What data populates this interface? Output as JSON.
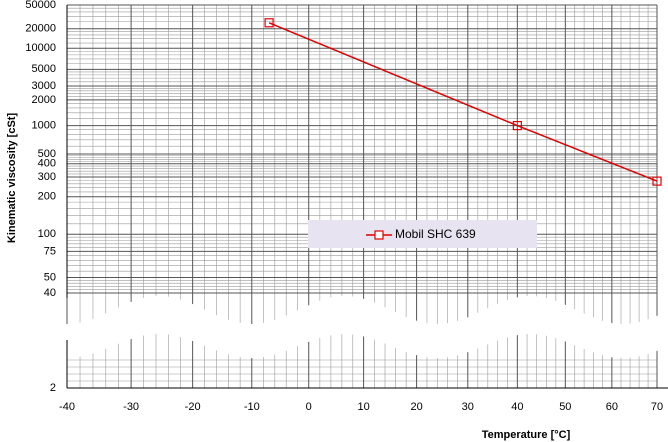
{
  "chart_data": {
    "type": "line",
    "x_label": "Temperature [°C]",
    "y_label": "Kinematic viscosity [cSt]",
    "xscale": "log-kelvin",
    "yscale": "walther",
    "grid": true,
    "xlim": [
      -40,
      70
    ],
    "xticks": [
      -40,
      -30,
      -20,
      -10,
      0,
      10,
      20,
      30,
      40,
      50,
      60,
      70
    ],
    "ylim": [
      2,
      50000
    ],
    "yticks": [
      2,
      40,
      50,
      75,
      100,
      200,
      300,
      400,
      500,
      1000,
      2000,
      3000,
      5000,
      10000,
      20000,
      50000
    ],
    "x": [
      -7,
      40,
      70
    ],
    "series": [
      {
        "name": "Mobil SHC 639",
        "color": "#e00000",
        "values": [
          25000,
          1000,
          275
        ]
      }
    ]
  }
}
